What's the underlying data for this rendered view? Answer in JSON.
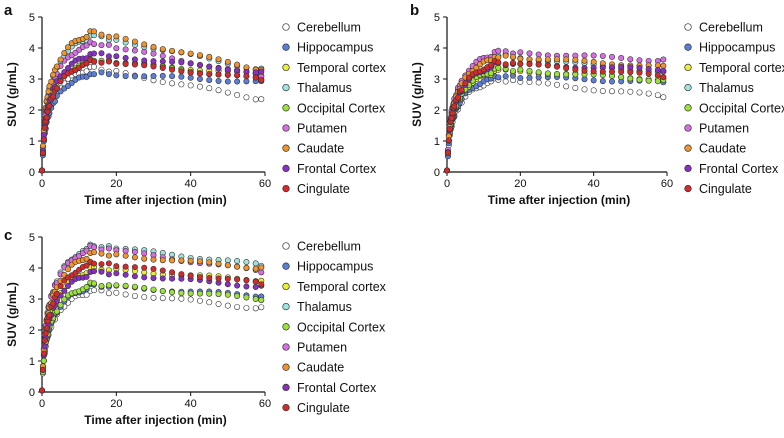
{
  "chart_data": [
    {
      "panel": "a",
      "type": "scatter",
      "xlabel": "Time after injection (min)",
      "ylabel": "SUV (g/mL)",
      "xlim": [
        0,
        60
      ],
      "ylim": [
        0,
        5
      ],
      "xticks": [
        0,
        20,
        40,
        60
      ],
      "yticks": [
        0,
        1,
        2,
        3,
        4,
        5
      ],
      "legend_position": "right",
      "series": [
        {
          "name": "Cerebellum",
          "peak": 3.4,
          "end": 2.35
        },
        {
          "name": "Hippocampus",
          "peak": 3.2,
          "end": 2.9
        },
        {
          "name": "Temporal cortex",
          "peak": 3.6,
          "end": 3.15
        },
        {
          "name": "Thalamus",
          "peak": 4.45,
          "end": 3.3
        },
        {
          "name": "Occipital Cortex",
          "peak": 3.65,
          "end": 3.0
        },
        {
          "name": "Putamen",
          "peak": 4.2,
          "end": 3.1
        },
        {
          "name": "Caudate",
          "peak": 4.55,
          "end": 3.3
        },
        {
          "name": "Frontal Cortex",
          "peak": 3.85,
          "end": 3.2
        },
        {
          "name": "Cingulate",
          "peak": 3.6,
          "end": 3.0
        }
      ]
    },
    {
      "panel": "b",
      "type": "scatter",
      "xlabel": "Time after injection (min)",
      "ylabel": "SUV (g/mL)",
      "xlim": [
        0,
        60
      ],
      "ylim": [
        0,
        5
      ],
      "xticks": [
        0,
        20,
        40,
        60
      ],
      "yticks": [
        0,
        1,
        2,
        3,
        4,
        5
      ],
      "legend_position": "right",
      "series": [
        {
          "name": "Cerebellum",
          "peak": 3.0,
          "end": 2.45
        },
        {
          "name": "Hippocampus",
          "peak": 3.1,
          "end": 2.9
        },
        {
          "name": "Temporal cortex",
          "peak": 3.3,
          "end": 3.0
        },
        {
          "name": "Thalamus",
          "peak": 3.8,
          "end": 3.2
        },
        {
          "name": "Occipital Cortex",
          "peak": 3.35,
          "end": 2.95
        },
        {
          "name": "Putamen",
          "peak": 3.9,
          "end": 3.6
        },
        {
          "name": "Caudate",
          "peak": 3.75,
          "end": 3.4
        },
        {
          "name": "Frontal Cortex",
          "peak": 3.5,
          "end": 3.3
        },
        {
          "name": "Cingulate",
          "peak": 3.55,
          "end": 3.1
        }
      ]
    },
    {
      "panel": "c",
      "type": "scatter",
      "xlabel": "Time after injection (min)",
      "ylabel": "SUV (g/mL)",
      "xlim": [
        0,
        60
      ],
      "ylim": [
        0,
        5
      ],
      "xticks": [
        0,
        20,
        40,
        60
      ],
      "yticks": [
        0,
        1,
        2,
        3,
        4,
        5
      ],
      "legend_position": "right",
      "series": [
        {
          "name": "Cerebellum",
          "peak": 3.3,
          "end": 2.7
        },
        {
          "name": "Hippocampus",
          "peak": 3.45,
          "end": 3.1
        },
        {
          "name": "Temporal cortex",
          "peak": 4.0,
          "end": 3.6
        },
        {
          "name": "Thalamus",
          "peak": 4.75,
          "end": 4.1
        },
        {
          "name": "Occipital Cortex",
          "peak": 3.5,
          "end": 3.0
        },
        {
          "name": "Putamen",
          "peak": 4.7,
          "end": 3.9
        },
        {
          "name": "Caudate",
          "peak": 4.5,
          "end": 4.0
        },
        {
          "name": "Frontal Cortex",
          "peak": 3.9,
          "end": 3.4
        },
        {
          "name": "Cingulate",
          "peak": 4.2,
          "end": 3.5
        }
      ]
    }
  ],
  "legend_colors": {
    "Cerebellum": "#ffffff",
    "Hippocampus": "#5b7fd6",
    "Temporal cortex": "#e8f035",
    "Thalamus": "#9fe3de",
    "Occipital Cortex": "#9be23a",
    "Putamen": "#d86ee3",
    "Caudate": "#f0942b",
    "Frontal Cortex": "#8a2fc4",
    "Cingulate": "#d42a2a"
  },
  "marker_edge_color": "#333333"
}
